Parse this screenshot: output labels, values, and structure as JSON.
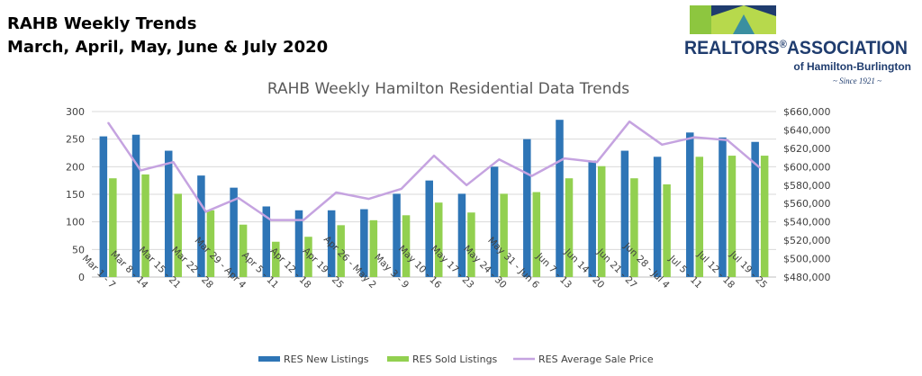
{
  "header": {
    "title": "RAHB Weekly Trends",
    "subtitle": "March, April, May, June & July 2020"
  },
  "logo": {
    "name_line1": "REALTORS",
    "registered_mark": "®",
    "name_line2": "ASSOCIATION",
    "region": "of Hamilton-Burlington",
    "since": "~ Since 1921 ~",
    "colors": {
      "navy": "#1f3c6e",
      "green": "#8dc63f",
      "teal": "#3a8fa0",
      "lime": "#b7d94c"
    }
  },
  "chart_data": {
    "type": "bar",
    "title": "RAHB Weekly Hamilton Residential Data Trends",
    "categories": [
      "Mar 1 - 7",
      "Mar 8 - 14",
      "Mar 15 - 21",
      "Mar 22 - 28",
      "Mar 29 - Apr 4",
      "Apr 5 - 11",
      "Apr 12 - 18",
      "Apr 19 - 25",
      "Apr 26 - May 2",
      "May 3 - 9",
      "May 10 - 16",
      "May 17 - 23",
      "May 24 - 30",
      "May 31 - Jun 6",
      "Jun 7 - 13",
      "Jun 14 - 20",
      "Jun 21 - 27",
      "Jun 28 - Jul 4",
      "Jul 5 - 11",
      "Jul 12 - 18",
      "Jul 19 - 25"
    ],
    "series": [
      {
        "name": "RES New Listings",
        "type": "bar",
        "axis": "left",
        "color": "#2e75b6",
        "values": [
          255,
          258,
          229,
          184,
          162,
          128,
          121,
          121,
          123,
          151,
          175,
          151,
          200,
          250,
          285,
          211,
          229,
          218,
          262,
          253,
          245
        ]
      },
      {
        "name": "RES Sold Listings",
        "type": "bar",
        "axis": "left",
        "color": "#92d050",
        "values": [
          179,
          186,
          151,
          121,
          95,
          64,
          73,
          94,
          103,
          112,
          135,
          117,
          151,
          154,
          179,
          201,
          179,
          168,
          218,
          220,
          220
        ]
      },
      {
        "name": "RES Average Sale Price",
        "type": "line",
        "axis": "right",
        "color": "#c5a3e0",
        "values": [
          648000,
          596000,
          605000,
          551000,
          566000,
          542000,
          542000,
          572000,
          565000,
          576000,
          612000,
          580000,
          608000,
          590000,
          609000,
          605000,
          649000,
          624000,
          632000,
          629000,
          599000
        ]
      }
    ],
    "y_left": {
      "min": 0,
      "max": 300,
      "step": 50,
      "ticks": [
        "0",
        "50",
        "100",
        "150",
        "200",
        "250",
        "300"
      ]
    },
    "y_right": {
      "min": 480000,
      "max": 660000,
      "step": 20000,
      "ticks": [
        "$480,000",
        "$500,000",
        "$520,000",
        "$540,000",
        "$560,000",
        "$580,000",
        "$600,000",
        "$620,000",
        "$640,000",
        "$660,000"
      ]
    },
    "grid": true,
    "legend_position": "bottom"
  }
}
